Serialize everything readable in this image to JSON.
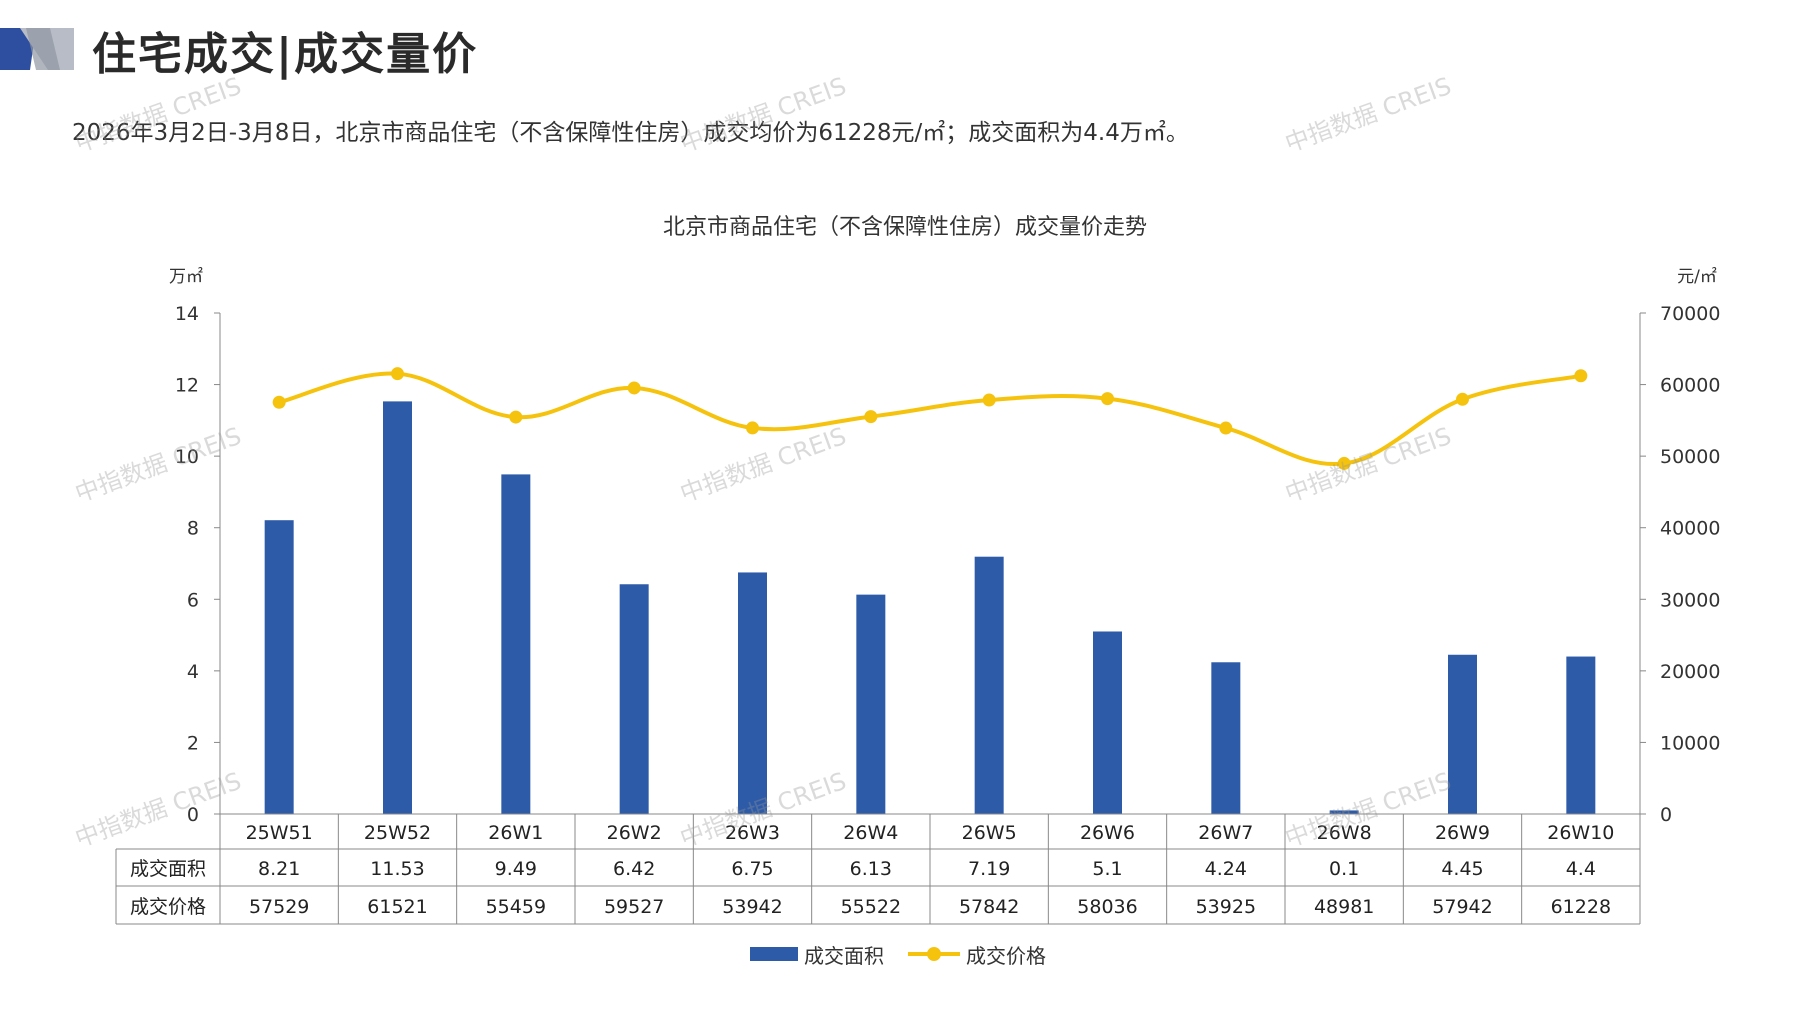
{
  "header": {
    "title": "住宅成交|成交量价",
    "subtitle": "2026年3月2日-3月8日，北京市商品住宅（不含保障性住房）成交均价为61228元/㎡；成交面积为4.4万㎡。"
  },
  "watermark": "中指数据 CREIS",
  "colors": {
    "bar": "#2e5ba8",
    "line": "#f5c30e",
    "logo_dark": "#2e4fa0",
    "logo_light": "#b8bcc6"
  },
  "chart_data": {
    "type": "bar+line",
    "title": "北京市商品住宅（不含保障性住房）成交量价走势",
    "categories": [
      "25W51",
      "25W52",
      "26W1",
      "26W2",
      "26W3",
      "26W4",
      "26W5",
      "26W6",
      "26W7",
      "26W8",
      "26W9",
      "26W10"
    ],
    "series": [
      {
        "name": "成交面积",
        "type": "bar",
        "axis": "left",
        "values": [
          8.21,
          11.53,
          9.49,
          6.42,
          6.75,
          6.13,
          7.19,
          5.1,
          4.24,
          0.1,
          4.45,
          4.4
        ],
        "labels": [
          "8.21",
          "11.53",
          "9.49",
          "6.42",
          "6.75",
          "6.13",
          "7.19",
          "5.1",
          "4.24",
          "0.1",
          "4.45",
          "4.4"
        ]
      },
      {
        "name": "成交价格",
        "type": "line",
        "axis": "right",
        "smooth": true,
        "values": [
          57529,
          61521,
          55459,
          59527,
          53942,
          55522,
          57842,
          58036,
          53925,
          48981,
          57942,
          61228
        ],
        "labels": [
          "57529",
          "61521",
          "55459",
          "59527",
          "53942",
          "55522",
          "57842",
          "58036",
          "53925",
          "48981",
          "57942",
          "61228"
        ]
      }
    ],
    "y_left": {
      "label": "万㎡",
      "lim": [
        0,
        14
      ],
      "ticks": [
        "0",
        "2",
        "4",
        "6",
        "8",
        "10",
        "12",
        "14"
      ]
    },
    "y_right": {
      "label": "元/㎡",
      "lim": [
        0,
        70000
      ],
      "ticks": [
        "0",
        "10000",
        "20000",
        "30000",
        "40000",
        "50000",
        "60000",
        "70000"
      ]
    },
    "data_table": true,
    "legend": "bottom-center",
    "grid": false
  }
}
